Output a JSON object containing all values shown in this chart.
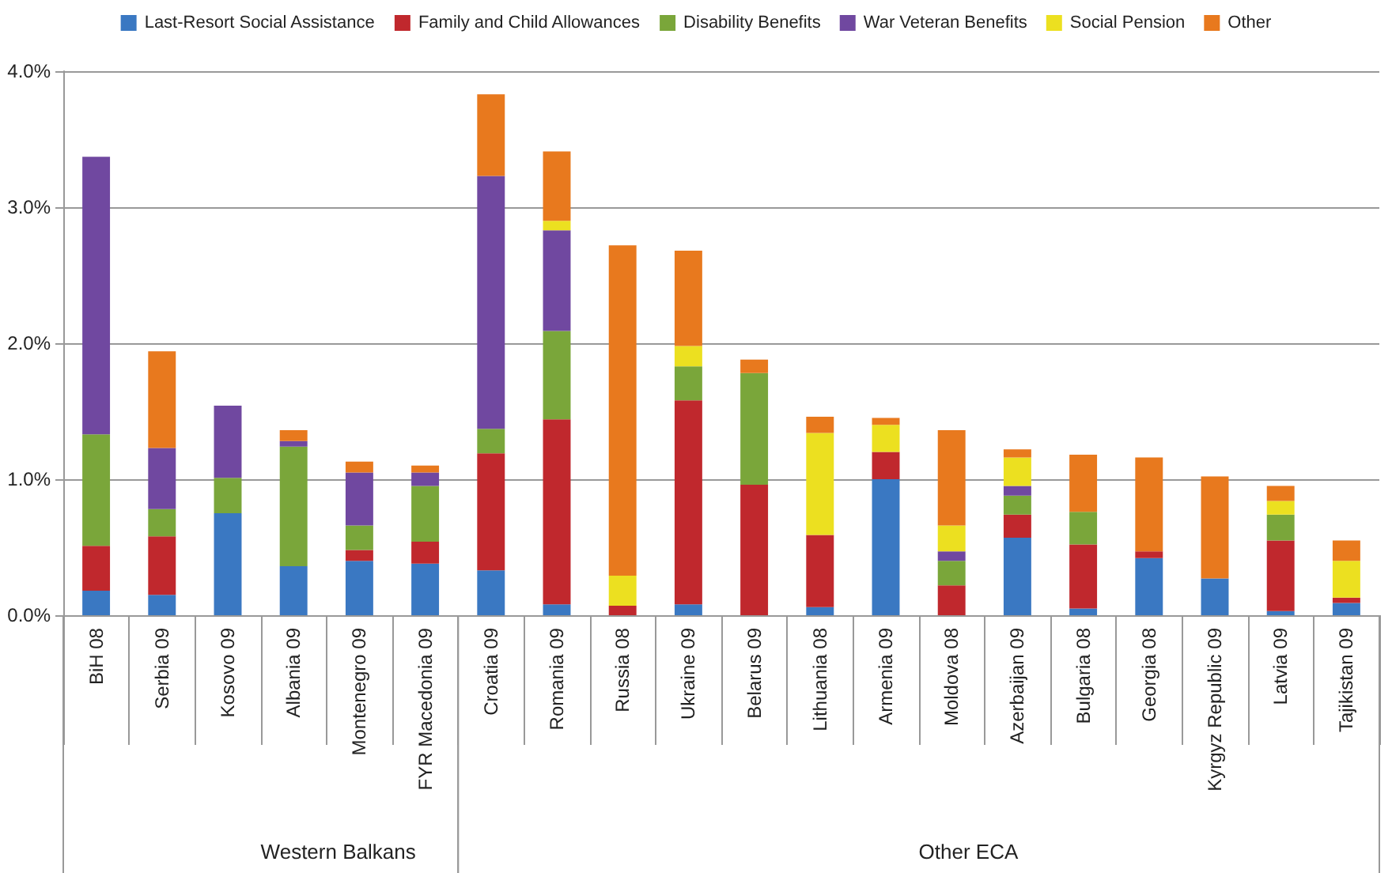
{
  "chart_data": {
    "type": "bar",
    "stacked": true,
    "categories": [
      "BiH 08",
      "Serbia 09",
      "Kosovo 09",
      "Albania 09",
      "Montenegro 09",
      "FYR Macedonia 09",
      "Croatia 09",
      "Romania 09",
      "Russia 08",
      "Ukraine 09",
      "Belarus 09",
      "Lithuania 08",
      "Armenia 09",
      "Moldova 08",
      "Azerbaijan 09",
      "Bulgaria 08",
      "Georgia 08",
      "Kyrgyz Republic 09",
      "Latvia 09",
      "Tajikistan 09"
    ],
    "series": [
      {
        "name": "Last-Resort Social Assistance",
        "color": "#3a78c2",
        "values": [
          0.18,
          0.15,
          0.75,
          0.36,
          0.4,
          0.38,
          0.33,
          0.08,
          0,
          0.08,
          0,
          0.06,
          1.0,
          0,
          0.57,
          0.05,
          0.42,
          0.27,
          0.03,
          0.09
        ]
      },
      {
        "name": "Family and Child Allowances",
        "color": "#c0282d",
        "values": [
          0.33,
          0.43,
          0,
          0,
          0.08,
          0.16,
          0.86,
          1.36,
          0.07,
          1.5,
          0.96,
          0.53,
          0.2,
          0.22,
          0.17,
          0.47,
          0.05,
          0,
          0.52,
          0.04
        ]
      },
      {
        "name": "Disability Benefits",
        "color": "#7aa63a",
        "values": [
          0.82,
          0.2,
          0.26,
          0.88,
          0.18,
          0.41,
          0.18,
          0.65,
          0,
          0.25,
          0.82,
          0,
          0,
          0.18,
          0.14,
          0.24,
          0,
          0,
          0.19,
          0
        ]
      },
      {
        "name": "War Veteran Benefits",
        "color": "#7048a0",
        "values": [
          2.04,
          0.45,
          0.53,
          0.04,
          0.39,
          0.1,
          1.86,
          0.74,
          0,
          0,
          0,
          0,
          0,
          0.07,
          0.07,
          0,
          0,
          0,
          0,
          0
        ]
      },
      {
        "name": "Social Pension",
        "color": "#ece020",
        "values": [
          0,
          0,
          0,
          0,
          0,
          0,
          0,
          0.07,
          0.22,
          0.15,
          0,
          0.75,
          0.2,
          0.19,
          0.21,
          0,
          0,
          0,
          0.1,
          0.27
        ]
      },
      {
        "name": "Other",
        "color": "#e8791e",
        "values": [
          0,
          0.71,
          0,
          0.08,
          0.08,
          0.05,
          0.6,
          0.51,
          2.43,
          0.7,
          0.1,
          0.12,
          0.05,
          0.7,
          0.06,
          0.42,
          0.69,
          0.75,
          0.11,
          0.15
        ]
      }
    ],
    "ylim": [
      0,
      4
    ],
    "yticks": [
      {
        "value": 0,
        "label": "0.0%"
      },
      {
        "value": 1,
        "label": "1.0%"
      },
      {
        "value": 2,
        "label": "2.0%"
      },
      {
        "value": 3,
        "label": "3.0%"
      },
      {
        "value": 4,
        "label": "4.0%"
      }
    ],
    "grid": "y",
    "legend": "top",
    "annotations": [
      "Western Balkans",
      "Other ECA"
    ]
  }
}
